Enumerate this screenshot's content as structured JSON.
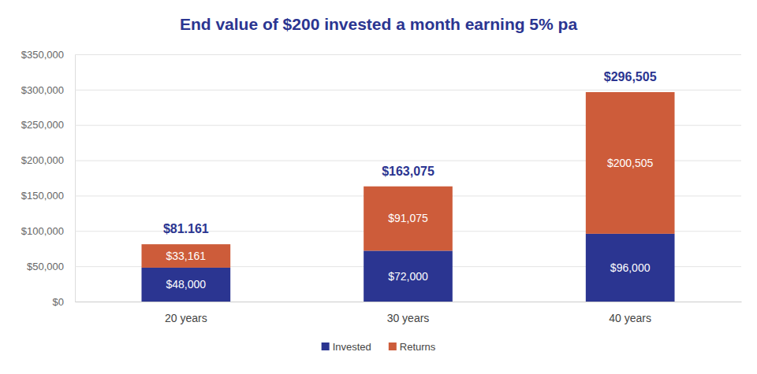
{
  "chart_data": {
    "type": "bar",
    "title": "End value of $200 invested a month earning 5% pa",
    "categories": [
      "20 years",
      "30 years",
      "40 years"
    ],
    "series": [
      {
        "name": "Invested",
        "color": "#2b3591",
        "values": [
          48000,
          72000,
          96000
        ],
        "value_labels": [
          "$48,000",
          "$72,000",
          "$96,000"
        ]
      },
      {
        "name": "Returns",
        "color": "#cd5c3a",
        "values": [
          33161,
          91075,
          200505
        ],
        "value_labels": [
          "$33,161",
          "$91,075",
          "$200,505"
        ]
      }
    ],
    "totals": {
      "values": [
        81161,
        163075,
        296505
      ],
      "value_labels": [
        "$81.161",
        "$163,075",
        "$296,505"
      ]
    },
    "stacked": true,
    "data_labels": true,
    "grid": true,
    "legend": "bottom",
    "ylim": [
      0,
      350000
    ],
    "yticks": [
      {
        "value": 0,
        "label": "$0"
      },
      {
        "value": 50000,
        "label": "$50,000"
      },
      {
        "value": 100000,
        "label": "$100,000"
      },
      {
        "value": 150000,
        "label": "$150,000"
      },
      {
        "value": 200000,
        "label": "$200,000"
      },
      {
        "value": 250000,
        "label": "$250,000"
      },
      {
        "value": 300000,
        "label": "$300,000"
      },
      {
        "value": 350000,
        "label": "$350,000"
      }
    ]
  }
}
